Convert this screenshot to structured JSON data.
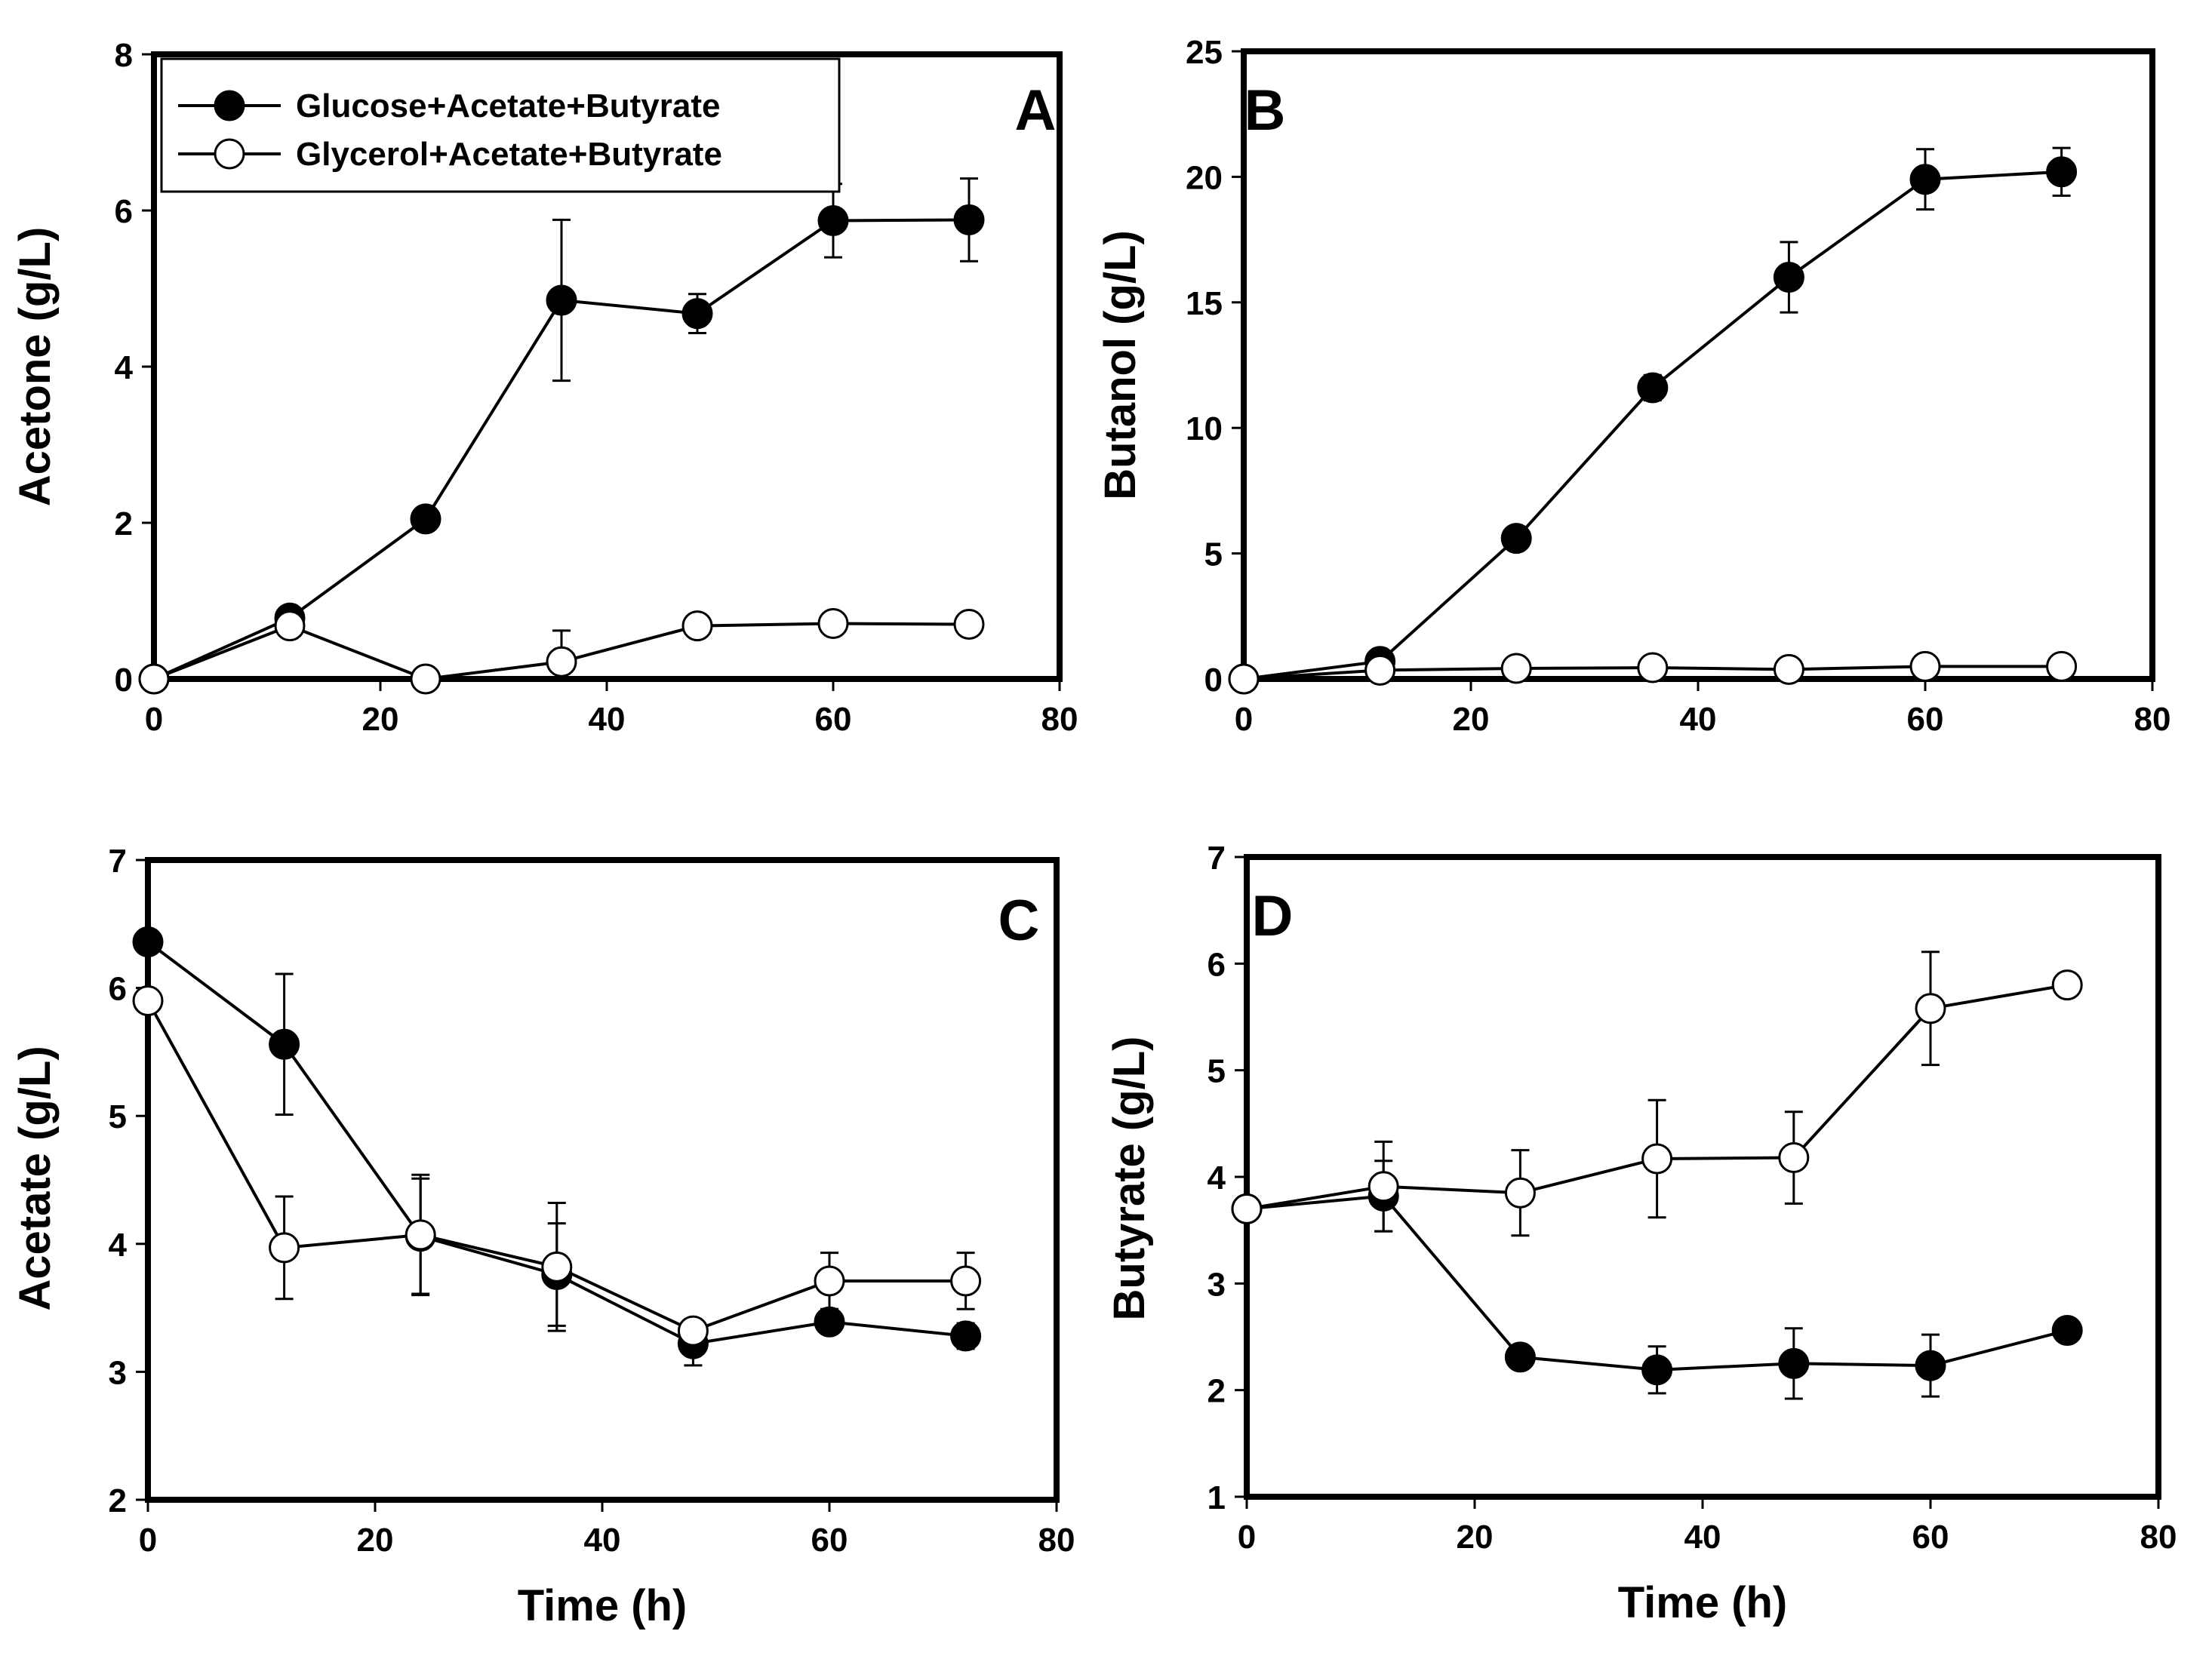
{
  "colors": {
    "ink": "#000000",
    "open_fill": "#ffffff"
  },
  "legend": {
    "entries": [
      "Glucose+Acetate+Butyrate",
      "Glycerol+Acetate+Butyrate"
    ]
  },
  "chart_data": [
    {
      "panel": "A",
      "type": "line",
      "ylabel": "Acetone (g/L)",
      "xlabel": "",
      "xlim": [
        0,
        80
      ],
      "ylim": [
        0,
        8
      ],
      "xticks": [
        0,
        20,
        40,
        60,
        80
      ],
      "yticks": [
        0,
        2,
        4,
        6,
        8
      ],
      "x": [
        0,
        12,
        24,
        36,
        48,
        60,
        72
      ],
      "series": [
        {
          "name": "Glucose+Acetate+Butyrate",
          "marker": "filled",
          "values": [
            0,
            0.78,
            2.05,
            4.85,
            4.68,
            5.87,
            5.88
          ],
          "errors": [
            0,
            0,
            0,
            1.03,
            0.25,
            0.47,
            0.53
          ]
        },
        {
          "name": "Glycerol+Acetate+Butyrate",
          "marker": "open",
          "values": [
            0,
            0.68,
            0,
            0.22,
            0.68,
            0.71,
            0.7
          ],
          "errors": [
            0,
            0,
            0,
            0.4,
            0,
            0,
            0
          ]
        }
      ]
    },
    {
      "panel": "B",
      "type": "line",
      "ylabel": "Butanol (g/L)",
      "xlabel": "",
      "xlim": [
        0,
        80
      ],
      "ylim": [
        0,
        25
      ],
      "xticks": [
        0,
        20,
        40,
        60,
        80
      ],
      "yticks": [
        0,
        5,
        10,
        15,
        20,
        25
      ],
      "x": [
        0,
        12,
        24,
        36,
        48,
        60,
        72
      ],
      "series": [
        {
          "name": "Glucose+Acetate+Butyrate",
          "marker": "filled",
          "values": [
            0,
            0.7,
            5.6,
            11.6,
            16.0,
            19.9,
            20.2
          ],
          "errors": [
            0,
            0,
            0,
            0.5,
            1.4,
            1.2,
            0.95
          ]
        },
        {
          "name": "Glycerol+Acetate+Butyrate",
          "marker": "open",
          "values": [
            0,
            0.35,
            0.42,
            0.45,
            0.38,
            0.5,
            0.5
          ],
          "errors": [
            0,
            0,
            0,
            0,
            0,
            0,
            0
          ]
        }
      ]
    },
    {
      "panel": "C",
      "type": "line",
      "ylabel": "Acetate (g/L)",
      "xlabel": "Time (h)",
      "xlim": [
        0,
        80
      ],
      "ylim": [
        2,
        7
      ],
      "xticks": [
        0,
        20,
        40,
        60,
        80
      ],
      "yticks": [
        2,
        3,
        4,
        5,
        6,
        7
      ],
      "x": [
        0,
        12,
        24,
        36,
        48,
        60,
        72
      ],
      "series": [
        {
          "name": "Glucose+Acetate+Butyrate",
          "marker": "filled",
          "values": [
            6.36,
            5.56,
            4.06,
            3.76,
            3.22,
            3.39,
            3.28
          ],
          "errors": [
            0,
            0.55,
            0.45,
            0.4,
            0.17,
            0,
            0.1
          ]
        },
        {
          "name": "Glycerol+Acetate+Butyrate",
          "marker": "open",
          "values": [
            5.9,
            3.97,
            4.07,
            3.82,
            3.32,
            3.71,
            3.71
          ],
          "errors": [
            0,
            0.4,
            0.47,
            0.5,
            0,
            0.22,
            0.22
          ]
        }
      ]
    },
    {
      "panel": "D",
      "type": "line",
      "ylabel": "Butyrate (g/L)",
      "xlabel": "Time (h)",
      "xlim": [
        0,
        80
      ],
      "ylim": [
        1,
        7
      ],
      "xticks": [
        0,
        20,
        40,
        60,
        80
      ],
      "yticks": [
        1,
        2,
        3,
        4,
        5,
        6,
        7
      ],
      "x": [
        0,
        12,
        24,
        36,
        48,
        60,
        72
      ],
      "series": [
        {
          "name": "Glucose+Acetate+Butyrate",
          "marker": "filled",
          "values": [
            3.7,
            3.82,
            2.31,
            2.19,
            2.25,
            2.23,
            2.56
          ],
          "errors": [
            0,
            0.33,
            0,
            0.22,
            0.33,
            0.29,
            0
          ]
        },
        {
          "name": "Glycerol+Acetate+Butyrate",
          "marker": "open",
          "values": [
            3.7,
            3.91,
            3.85,
            4.17,
            4.18,
            5.58,
            5.8
          ],
          "errors": [
            0,
            0.42,
            0.4,
            0.55,
            0.43,
            0.53,
            0
          ]
        }
      ]
    }
  ]
}
